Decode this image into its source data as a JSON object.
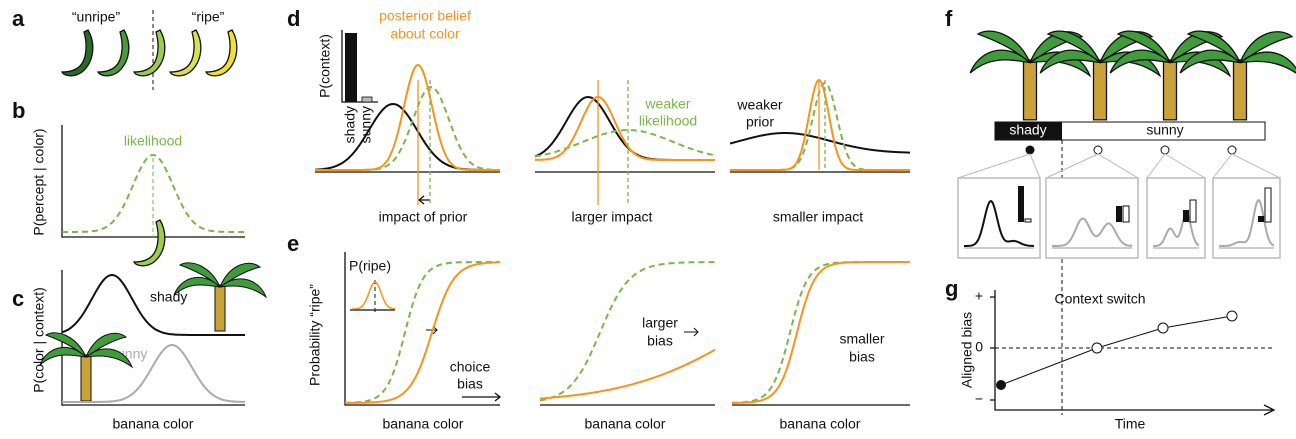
{
  "panels": {
    "a": {
      "label": "a",
      "unripe": "“unripe”",
      "ripe": "“ripe”"
    },
    "b": {
      "label": "b",
      "ylabel": "P(percept | color)",
      "curve": "likelihood"
    },
    "c": {
      "label": "c",
      "ylabel": "P(color | context)",
      "shady": "shady",
      "sunny": "sunny",
      "xlabel": "banana color"
    },
    "d": {
      "label": "d",
      "inset_ylabel": "P(context)",
      "inset_categories": [
        "shady",
        "sunny"
      ],
      "posterior": [
        "posterior belief",
        "about color"
      ],
      "weaker_likelihood": [
        "weaker",
        "likelihood"
      ],
      "weaker_prior": [
        "weaker",
        "prior"
      ],
      "xlabels": [
        "impact of prior",
        "larger impact",
        "smaller impact"
      ]
    },
    "e": {
      "label": "e",
      "ylabel": "Probability “ripe”",
      "inset": "P(ripe)",
      "choice_bias": [
        "choice",
        "bias"
      ],
      "larger_bias": [
        "larger",
        "bias"
      ],
      "smaller_bias": [
        "smaller",
        "bias"
      ],
      "xlabels": [
        "banana color",
        "banana color",
        "banana color"
      ]
    },
    "f": {
      "label": "f",
      "bar": [
        "shady",
        "sunny"
      ]
    },
    "g": {
      "label": "g",
      "yticks": [
        "+",
        "0",
        "−"
      ],
      "ylabel": "Aligned bias",
      "xlabel": "Time",
      "annotation": "Context switch"
    }
  }
}
